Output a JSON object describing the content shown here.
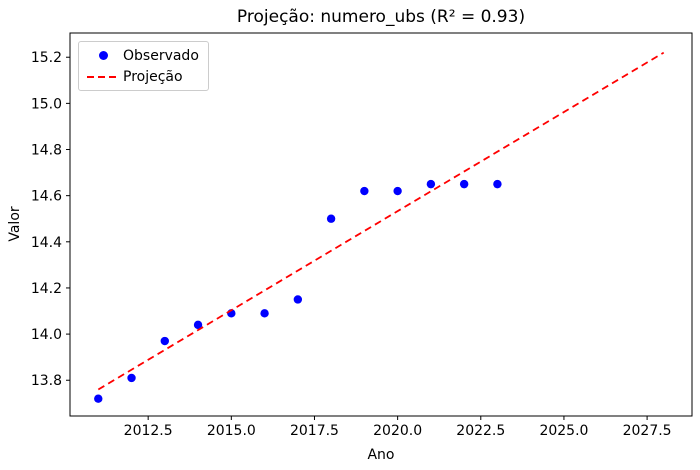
{
  "figure": {
    "title": "Projeção: numero_ubs (R² = 0.93)",
    "xlabel": "Ano",
    "ylabel": "Valor"
  },
  "legend": {
    "position": "upper-left",
    "items": [
      {
        "label": "Observado",
        "marker": "dot",
        "color": "#0000ff"
      },
      {
        "label": "Projeção",
        "marker": "dashed-line",
        "color": "#ff0000"
      }
    ]
  },
  "chart_data": {
    "type": "scatter",
    "title": "Projeção: numero_ubs (R² = 0.93)",
    "xlabel": "Ano",
    "ylabel": "Valor",
    "r_squared": 0.93,
    "grid": false,
    "legend_position": "upper left",
    "xlim": [
      2010.15,
      2028.85
    ],
    "ylim": [
      13.645,
      15.305
    ],
    "x_ticks": {
      "values": [
        2012.5,
        2015.0,
        2017.5,
        2020.0,
        2022.5,
        2025.0,
        2027.5
      ],
      "labels": [
        "2012.5",
        "2015.0",
        "2017.5",
        "2020.0",
        "2022.5",
        "2025.0",
        "2027.5"
      ]
    },
    "y_ticks": {
      "values": [
        13.8,
        14.0,
        14.2,
        14.4,
        14.6,
        14.8,
        15.0,
        15.2
      ],
      "labels": [
        "13.8",
        "14.0",
        "14.2",
        "14.4",
        "14.6",
        "14.8",
        "15.0",
        "15.2"
      ]
    },
    "series": [
      {
        "name": "Observado",
        "type": "scatter",
        "color": "#0000ff",
        "x": [
          2011,
          2012,
          2013,
          2014,
          2015,
          2016,
          2017,
          2018,
          2019,
          2020,
          2021,
          2022,
          2023
        ],
        "y": [
          13.72,
          13.81,
          13.97,
          14.04,
          14.09,
          14.09,
          14.15,
          14.5,
          14.62,
          14.62,
          14.65,
          14.65,
          14.65
        ]
      },
      {
        "name": "Projeção",
        "type": "line",
        "style": "dashed",
        "color": "#ff0000",
        "x": [
          2011,
          2028
        ],
        "y": [
          13.76,
          15.22
        ]
      }
    ]
  }
}
